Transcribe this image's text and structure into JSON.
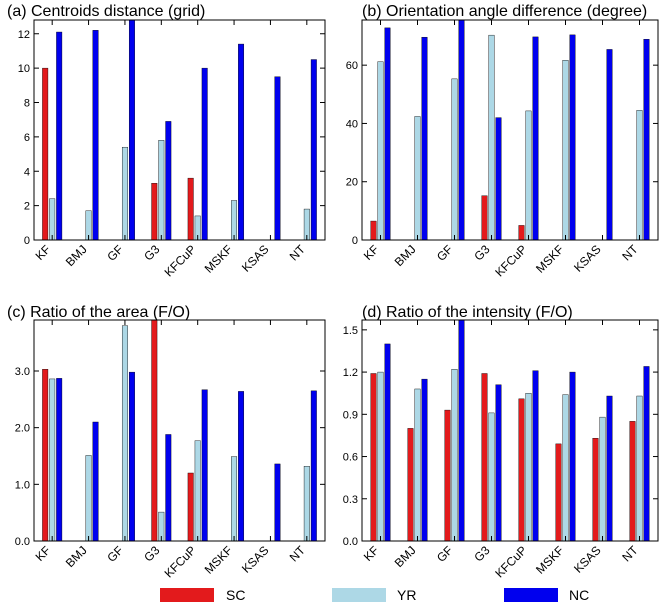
{
  "legend": [
    {
      "name": "SC",
      "color": "#e31a1c"
    },
    {
      "name": "YR",
      "color": "#add8e6"
    },
    {
      "name": "NC",
      "color": "#0000ee"
    }
  ],
  "chart_data": [
    {
      "type": "bar",
      "title": "(a) Centroids distance (grid)",
      "categories": [
        "KF",
        "BMJ",
        "GF",
        "G3",
        "KFCuP",
        "MSKF",
        "KSAS",
        "NT"
      ],
      "ylim": [
        0,
        12.8
      ],
      "yticks": [
        "0",
        "2",
        "4",
        "6",
        "8",
        "10",
        "12"
      ],
      "ytick_values": [
        0,
        2,
        4,
        6,
        8,
        10,
        12
      ],
      "series": [
        {
          "name": "SC",
          "values": [
            10.0,
            0,
            0,
            3.3,
            3.6,
            0,
            0,
            0
          ]
        },
        {
          "name": "YR",
          "values": [
            2.4,
            1.7,
            5.4,
            5.8,
            1.4,
            2.3,
            0,
            1.8
          ]
        },
        {
          "name": "NC",
          "values": [
            12.1,
            12.2,
            12.8,
            6.9,
            10.0,
            11.4,
            9.5,
            10.5
          ]
        }
      ]
    },
    {
      "type": "bar",
      "title": "(b) Orientation angle difference (degree)",
      "categories": [
        "KF",
        "BMJ",
        "GF",
        "G3",
        "KFCuP",
        "MSKF",
        "KSAS",
        "NT"
      ],
      "ylim": [
        0,
        75.5
      ],
      "yticks": [
        "0",
        "20",
        "40",
        "60"
      ],
      "ytick_values": [
        0,
        20,
        40,
        60
      ],
      "series": [
        {
          "name": "SC",
          "values": [
            6.5,
            0,
            0,
            15.2,
            5.0,
            0,
            0,
            0
          ]
        },
        {
          "name": "YR",
          "values": [
            61.2,
            42.4,
            55.3,
            70.3,
            44.3,
            61.7,
            0,
            44.5
          ]
        },
        {
          "name": "NC",
          "values": [
            72.8,
            69.6,
            75.5,
            42.0,
            69.7,
            70.4,
            65.4,
            68.9
          ]
        }
      ]
    },
    {
      "type": "bar",
      "title": "(c) Ratio of the area (F/O)",
      "categories": [
        "KF",
        "BMJ",
        "GF",
        "G3",
        "KFCuP",
        "MSKF",
        "KSAS",
        "NT"
      ],
      "ylim": [
        0,
        3.9
      ],
      "yticks": [
        "0.0",
        "1.0",
        "2.0",
        "3.0"
      ],
      "ytick_values": [
        0,
        1,
        2,
        3
      ],
      "series": [
        {
          "name": "SC",
          "values": [
            3.03,
            0,
            0,
            3.9,
            1.2,
            0,
            0,
            0
          ]
        },
        {
          "name": "YR",
          "values": [
            2.86,
            1.51,
            3.8,
            0.51,
            1.77,
            1.49,
            0,
            1.32
          ]
        },
        {
          "name": "NC",
          "values": [
            2.87,
            2.1,
            2.98,
            1.88,
            2.67,
            2.64,
            1.36,
            2.65
          ]
        }
      ]
    },
    {
      "type": "bar",
      "title": "(d) Ratio of the intensity (F/O)",
      "categories": [
        "KF",
        "BMJ",
        "GF",
        "G3",
        "KFCuP",
        "MSKF",
        "KSAS",
        "NT"
      ],
      "ylim": [
        0,
        1.57
      ],
      "yticks": [
        "0.0",
        "0.3",
        "0.6",
        "0.9",
        "1.2",
        "1.5"
      ],
      "ytick_values": [
        0,
        0.3,
        0.6,
        0.9,
        1.2,
        1.5
      ],
      "series": [
        {
          "name": "SC",
          "values": [
            1.19,
            0.8,
            0.93,
            1.19,
            1.01,
            0.69,
            0.73,
            0.85
          ]
        },
        {
          "name": "YR",
          "values": [
            1.2,
            1.08,
            1.22,
            0.91,
            1.05,
            1.04,
            0.88,
            1.03
          ]
        },
        {
          "name": "NC",
          "values": [
            1.4,
            1.15,
            1.57,
            1.11,
            1.21,
            1.2,
            1.03,
            1.24
          ]
        }
      ]
    }
  ]
}
